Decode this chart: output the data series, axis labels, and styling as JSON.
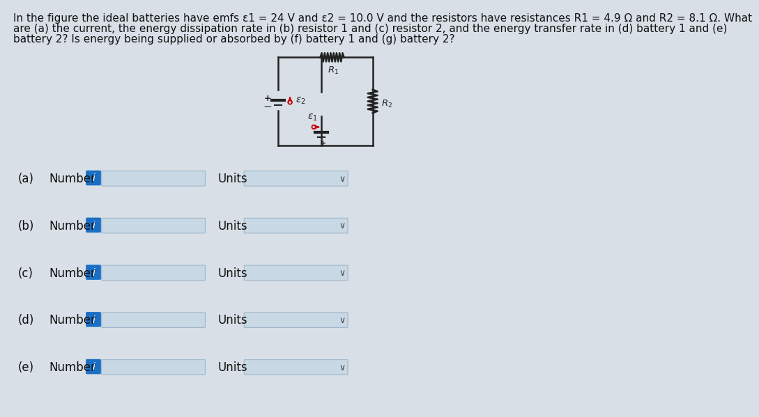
{
  "bg_color": "#d8dfe6",
  "title_text_line1": "In the figure the ideal batteries have emfs ε1 = 24 V and ε2 = 10.0 V and the resistors have resistances R1 = 4.9 Ω and R2 = 8.1 Ω. What",
  "title_text_line2": "are (a) the current, the energy dissipation rate in (b) resistor 1 and (c) resistor 2, and the energy transfer rate in (d) battery 1 and (e)",
  "title_text_line3": "battery 2? Is energy being supplied or absorbed by (f) battery 1 and (g) battery 2?",
  "title_fontsize": 11.0,
  "rows": [
    {
      "label": "(a)",
      "text": "Number",
      "units_text": "Units"
    },
    {
      "label": "(b)",
      "text": "Number",
      "units_text": "Units"
    },
    {
      "label": "(c)",
      "text": "Number",
      "units_text": "Units"
    },
    {
      "label": "(d)",
      "text": "Number",
      "units_text": "Units"
    },
    {
      "label": "(e)",
      "text": "Number",
      "units_text": "Units"
    }
  ],
  "input_box_color": "#c8d8e4",
  "units_box_color": "#c8d8e4",
  "btn_color": "#1a6fc4",
  "btn_text_color": "#ffffff",
  "label_color": "#111111",
  "line_color": "#222222"
}
